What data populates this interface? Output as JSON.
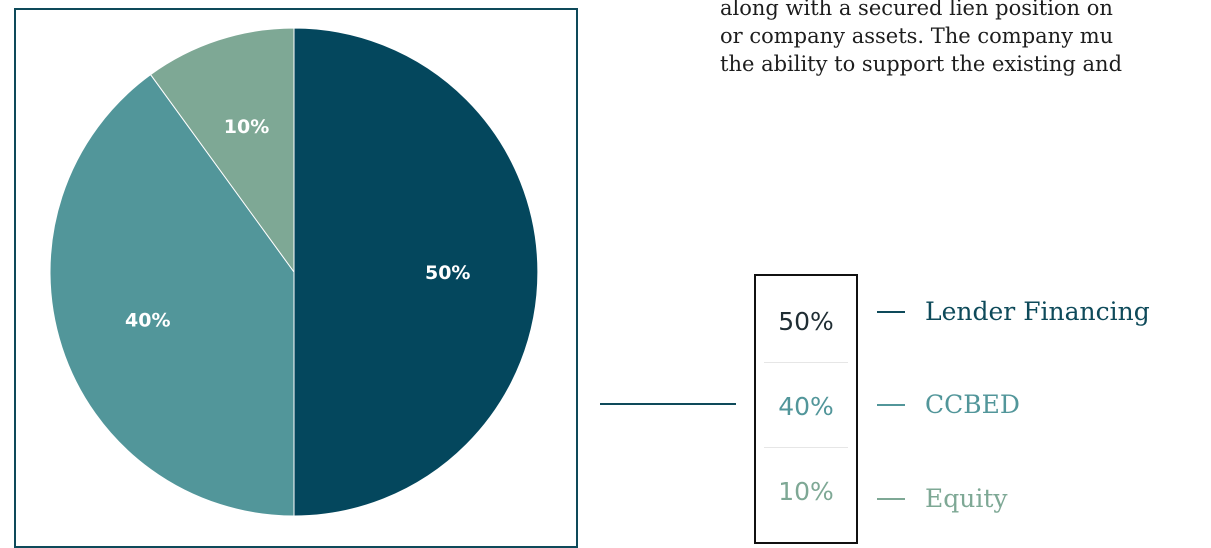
{
  "body_text": {
    "lines": [
      "along with a secured lien position on",
      "or company assets. The company mu",
      "the ability to support the existing and"
    ]
  },
  "colors": {
    "lender": "#04475d",
    "ccbed": "#52969a",
    "equity": "#7ea895",
    "frame": "#0e4a5a"
  },
  "chart_data": {
    "type": "pie",
    "categories": [
      "Lender Financing",
      "CCBED",
      "Equity"
    ],
    "values": [
      50,
      40,
      10
    ],
    "value_labels": [
      "50%",
      "40%",
      "10%"
    ],
    "colors": [
      "#04475d",
      "#52969a",
      "#7ea895"
    ],
    "legend_placement": "right"
  },
  "legend": {
    "items": [
      {
        "percent": "50%",
        "label": "Lender Financing"
      },
      {
        "percent": "40%",
        "label": "CCBED"
      },
      {
        "percent": "10%",
        "label": "Equity"
      }
    ]
  }
}
